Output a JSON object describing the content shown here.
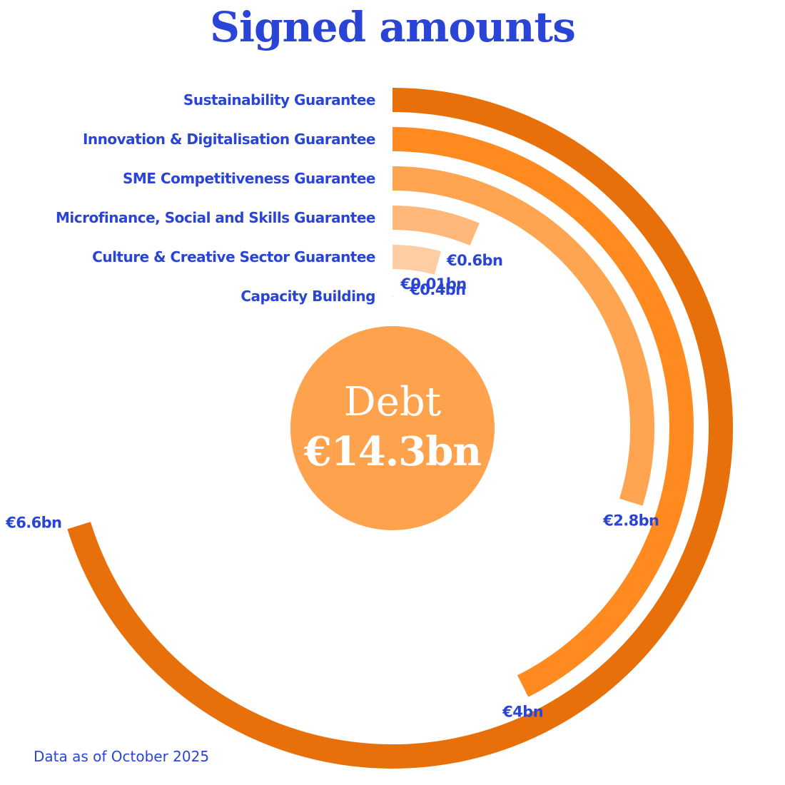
{
  "title": "Signed amounts",
  "footnote": "Data as of October 2025",
  "center": {
    "label": "Debt",
    "value": "€14.3bn"
  },
  "colors": {
    "text": "#2a44d6",
    "center_fill": "#ffa24d",
    "center_text": "#ffffff",
    "bars": [
      "#e8700a",
      "#ff8a1f",
      "#ffa552",
      "#ffb87a",
      "#ffcda3",
      "#ffe0c4"
    ]
  },
  "chart_data": {
    "type": "radial-bar",
    "title": "Signed amounts",
    "unit": "€bn",
    "categories": [
      "Sustainability Guarantee",
      "Innovation & Digitalisation Guarantee",
      "SME Competitiveness Guarantee",
      "Microfinance, Social and Skills Guarantee",
      "Culture & Creative Sector Guarantee",
      "Capacity Building"
    ],
    "values": [
      6.6,
      4,
      2.8,
      0.6,
      0.4,
      0.01
    ],
    "value_labels": [
      "€6.6bn",
      "€4bn",
      "€2.8bn",
      "€0.6bn",
      "€0.4bn",
      "€0.01bn"
    ],
    "total": 14.3
  }
}
